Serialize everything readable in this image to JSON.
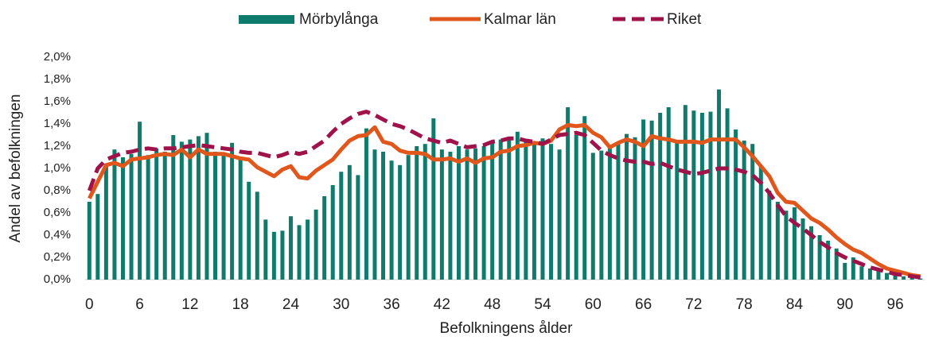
{
  "chart_data": {
    "type": "bar",
    "x_label": "Befolkningens ålder",
    "y_label": "Andel av befolkningen",
    "categories": [
      0,
      null,
      null,
      null,
      null,
      null,
      6,
      null,
      null,
      null,
      null,
      null,
      12,
      null,
      null,
      null,
      null,
      null,
      18,
      null,
      null,
      null,
      null,
      null,
      24,
      null,
      null,
      null,
      null,
      null,
      30,
      null,
      null,
      null,
      null,
      null,
      36,
      null,
      null,
      null,
      null,
      null,
      42,
      null,
      null,
      null,
      null,
      null,
      48,
      null,
      null,
      null,
      null,
      null,
      54,
      null,
      null,
      null,
      null,
      null,
      60,
      null,
      null,
      null,
      null,
      null,
      66,
      null,
      null,
      null,
      null,
      null,
      72,
      null,
      null,
      null,
      null,
      null,
      78,
      null,
      null,
      null,
      null,
      null,
      84,
      null,
      null,
      null,
      null,
      null,
      90,
      null,
      null,
      null,
      null,
      null,
      96,
      null,
      null,
      null
    ],
    "series": [
      {
        "name": "Mörbylånga",
        "type": "bar",
        "color": "#0f7b6c",
        "values": [
          0.7,
          0.77,
          1.03,
          1.17,
          1.1,
          1.13,
          1.42,
          1.12,
          1.18,
          1.15,
          1.3,
          1.24,
          1.26,
          1.29,
          1.32,
          1.15,
          1.13,
          1.23,
          1.1,
          0.88,
          0.79,
          0.54,
          0.43,
          0.44,
          0.57,
          0.49,
          0.54,
          0.63,
          0.75,
          0.85,
          0.97,
          1.03,
          0.94,
          1.36,
          1.17,
          1.15,
          1.07,
          1.03,
          1.12,
          1.2,
          1.22,
          1.45,
          1.17,
          1.15,
          1.2,
          1.17,
          1.18,
          1.2,
          1.23,
          1.26,
          1.28,
          1.33,
          1.25,
          1.23,
          1.27,
          1.22,
          1.17,
          1.55,
          1.3,
          1.47,
          1.14,
          1.16,
          1.2,
          1.22,
          1.31,
          1.28,
          1.44,
          1.43,
          1.5,
          1.55,
          1.25,
          1.57,
          1.52,
          1.5,
          1.51,
          1.71,
          1.54,
          1.35,
          1.25,
          1.22,
          1.02,
          0.8,
          0.7,
          0.62,
          0.65,
          0.55,
          0.48,
          0.4,
          0.35,
          0.28,
          0.15,
          0.2,
          0.12,
          0.1,
          0.08,
          0.06,
          0.05,
          0.03,
          0.02,
          0.01
        ]
      },
      {
        "name": "Kalmar län",
        "type": "line",
        "dashed": false,
        "color": "#e0561b",
        "values": [
          0.73,
          0.88,
          1.03,
          1.05,
          1.02,
          1.08,
          1.09,
          1.1,
          1.12,
          1.13,
          1.12,
          1.17,
          1.1,
          1.17,
          1.13,
          1.13,
          1.13,
          1.11,
          1.09,
          1.08,
          1.01,
          0.97,
          0.93,
          0.99,
          1.02,
          0.92,
          0.91,
          0.98,
          1.03,
          1.08,
          1.17,
          1.25,
          1.29,
          1.3,
          1.37,
          1.24,
          1.22,
          1.16,
          1.14,
          1.14,
          1.13,
          1.08,
          1.08,
          1.09,
          1.06,
          1.09,
          1.05,
          1.09,
          1.1,
          1.15,
          1.16,
          1.2,
          1.21,
          1.23,
          1.22,
          1.25,
          1.35,
          1.39,
          1.38,
          1.39,
          1.32,
          1.28,
          1.19,
          1.23,
          1.26,
          1.24,
          1.2,
          1.29,
          1.27,
          1.26,
          1.24,
          1.24,
          1.24,
          1.23,
          1.26,
          1.26,
          1.26,
          1.26,
          1.19,
          1.11,
          1.02,
          0.93,
          0.78,
          0.7,
          0.69,
          0.62,
          0.55,
          0.51,
          0.45,
          0.38,
          0.32,
          0.27,
          0.24,
          0.19,
          0.14,
          0.1,
          0.08,
          0.06,
          0.04,
          0.03
        ]
      },
      {
        "name": "Riket",
        "type": "line",
        "dashed": true,
        "color": "#a0124a",
        "values": [
          0.8,
          1.0,
          1.08,
          1.11,
          1.14,
          1.15,
          1.17,
          1.18,
          1.17,
          1.18,
          1.18,
          1.19,
          1.2,
          1.21,
          1.2,
          1.19,
          1.18,
          1.17,
          1.15,
          1.14,
          1.14,
          1.12,
          1.1,
          1.12,
          1.15,
          1.13,
          1.15,
          1.2,
          1.25,
          1.33,
          1.4,
          1.45,
          1.49,
          1.51,
          1.48,
          1.44,
          1.4,
          1.38,
          1.35,
          1.31,
          1.27,
          1.25,
          1.23,
          1.25,
          1.22,
          1.19,
          1.2,
          1.21,
          1.24,
          1.25,
          1.27,
          1.27,
          1.25,
          1.24,
          1.22,
          1.26,
          1.3,
          1.31,
          1.32,
          1.3,
          1.23,
          1.16,
          1.12,
          1.09,
          1.07,
          1.06,
          1.06,
          1.04,
          1.05,
          1.02,
          0.99,
          0.97,
          0.95,
          0.96,
          0.98,
          1.0,
          1.0,
          0.99,
          0.97,
          0.94,
          0.87,
          0.78,
          0.67,
          0.57,
          0.51,
          0.46,
          0.4,
          0.34,
          0.29,
          0.24,
          0.2,
          0.17,
          0.14,
          0.11,
          0.09,
          0.07,
          0.05,
          0.04,
          0.03,
          0.02
        ]
      }
    ],
    "ylim": [
      0,
      2
    ],
    "yticks": [
      {
        "value": 0,
        "label": "0,0%"
      },
      {
        "value": 0.2,
        "label": "0,2%"
      },
      {
        "value": 0.4,
        "label": "0,4%"
      },
      {
        "value": 0.6,
        "label": "0,6%"
      },
      {
        "value": 0.8,
        "label": "0,8%"
      },
      {
        "value": 1.0,
        "label": "1,0%"
      },
      {
        "value": 1.2,
        "label": "1,2%"
      },
      {
        "value": 1.4,
        "label": "1,4%"
      },
      {
        "value": 1.6,
        "label": "1,6%"
      },
      {
        "value": 1.8,
        "label": "1,8%"
      },
      {
        "value": 2.0,
        "label": "2,0%"
      }
    ],
    "legend": "top",
    "grid": false
  }
}
